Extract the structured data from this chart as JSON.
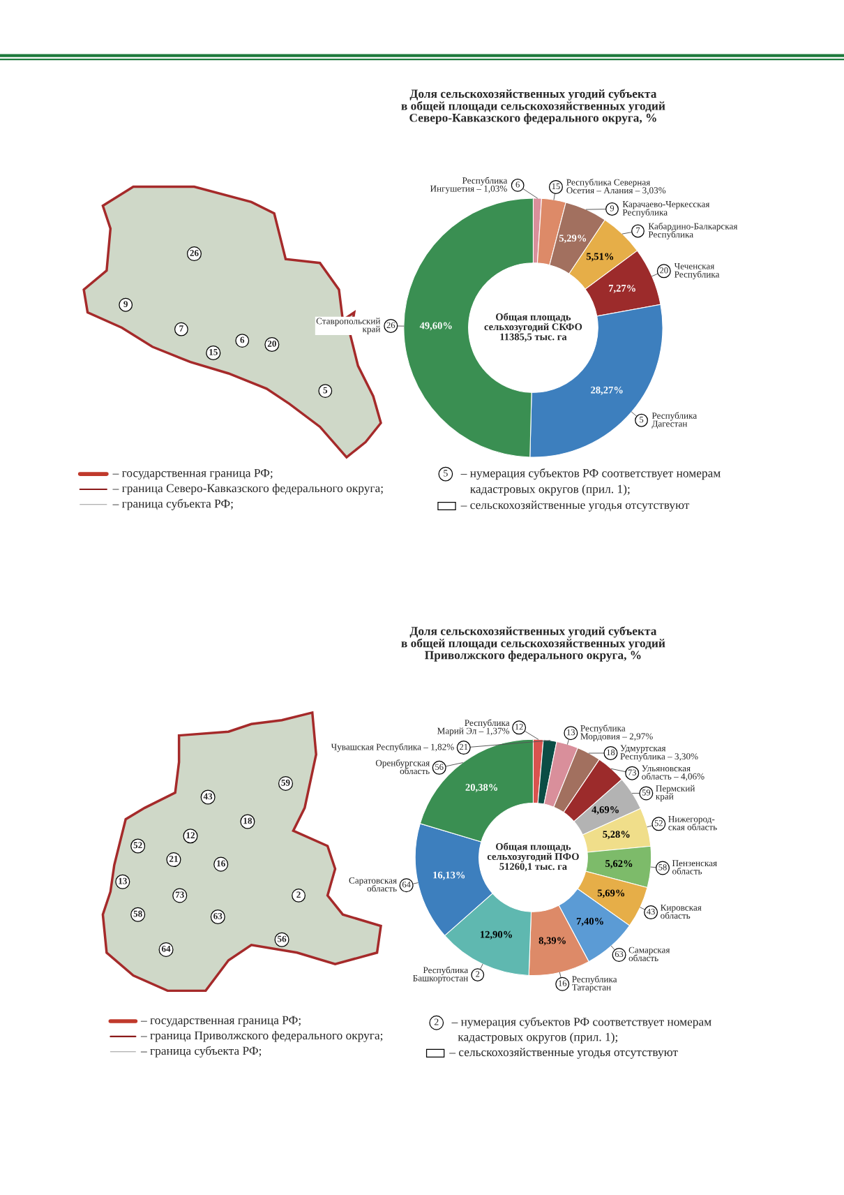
{
  "chart_data": [
    {
      "type": "donut",
      "title": "Доля сельскохозяйственных угодий субъекта\nв общей площади сельскохозяйственных угодий\nСеверо-Кавказского федерального округа, %",
      "categories": [
        "Республика\nИнгушетия – 1,03%",
        "Республика Северная\nОсетия – Алания – 3,03%",
        "Карачаево-Черкесская\nРеспублика",
        "Кабардино-Балкарская\nРеспублика",
        "Чеченская\nРеспублика",
        "Республика\nДагестан",
        "Ставропольский\nкрай"
      ],
      "values": [
        1.03,
        3.03,
        5.29,
        5.51,
        7.27,
        28.27,
        49.6
      ],
      "value_labels": [
        null,
        null,
        "5,29%",
        "5,51%",
        "7,27%",
        "28,27%",
        "49,60%"
      ],
      "colors": [
        "#d98f9b",
        "#dd8a68",
        "#a2705f",
        "#e6ae48",
        "#9c2b2b",
        "#3d7fbe",
        "#3a8f52"
      ],
      "annotations": [
        "6",
        "15",
        "9",
        "7",
        "20",
        "5",
        "26",
        "Общая площадь\nсельхозугодий СКФО\n11385,5 тыс. га",
        "– государственная граница РФ;",
        "– граница Северо-Кавказского федерального округа;",
        "– граница субъекта РФ;",
        "5",
        "– нумерация субъектов РФ соответствует номерам",
        "кадастровых округов (прил. 1);",
        "– сельскохозяйственные угодья отсутствуют",
        "26",
        "9",
        "7",
        "15",
        "6",
        "20",
        "5"
      ]
    },
    {
      "type": "donut",
      "title": "Доля сельскохозяйственных угодий субъекта\nв общей площади сельскохозяйственных угодий\nПриволжского федерального округа, %",
      "categories": [
        "Республика\nМарий Эл – 1,37%",
        "Чувашская Республика – 1,82%",
        "Республика\nМордовия – 2,97%",
        "Удмуртская\nРеспублика – 3,30%",
        "Ульяновская\nобласть – 4,06%",
        "Пермский\nкрай",
        "Нижегород-\nская область",
        "Пензенская\nобласть",
        "Кировская\nобласть",
        "Самарская\nобласть",
        "Республика\nТатарстан",
        "Республика\nБашкортостан",
        "Саратовская\nобласть",
        "Оренбургская\nобласть"
      ],
      "values": [
        1.37,
        1.82,
        2.97,
        3.3,
        4.06,
        4.69,
        5.28,
        5.62,
        5.69,
        7.4,
        8.39,
        12.9,
        16.13,
        20.38
      ],
      "value_labels": [
        null,
        null,
        null,
        null,
        null,
        "4,69%",
        "5,28%",
        "5,62%",
        "5,69%",
        "7,40%",
        "8,39%",
        "12,90%",
        "16,13%",
        "20,38%"
      ],
      "colors": [
        "#d9534f",
        "#0b4d45",
        "#d98f9b",
        "#a2705f",
        "#9c2b2b",
        "#b3b3b3",
        "#f0de8a",
        "#7dbb6a",
        "#e6ae48",
        "#5b9bd5",
        "#dd8a68",
        "#5fb8b0",
        "#3d7fbe",
        "#3a8f52"
      ],
      "annotations": [
        "12",
        "21",
        "13",
        "18",
        "73",
        "59",
        "52",
        "58",
        "43",
        "63",
        "16",
        "2",
        "64",
        "56",
        "Общая площадь\nсельхозугодий ПФО\n51260,1 тыс. га",
        "– государственная граница РФ;",
        "– граница Приволжского федерального округа;",
        "– граница субъекта РФ;",
        "2",
        "– нумерация субъектов РФ соответствует номерам",
        "кадастровых округов (прил. 1);",
        "– сельскохозяйственные угодья отсутствуют",
        "59",
        "43",
        "18",
        "12",
        "52",
        "21",
        "16",
        "13",
        "73",
        "2",
        "58",
        "63",
        "56",
        "64"
      ]
    }
  ]
}
